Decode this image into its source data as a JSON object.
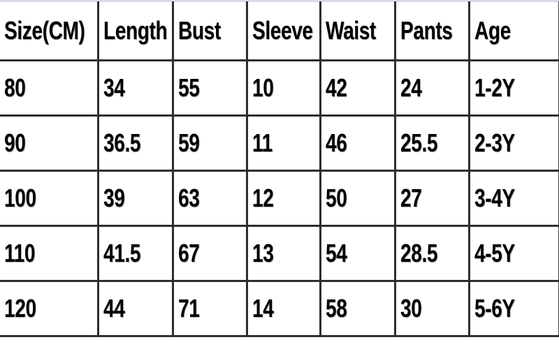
{
  "headers": [
    "Size(CM)",
    "Length",
    "Bust",
    "Sleeve",
    "Waist",
    "Pants",
    "Age"
  ],
  "rows": [
    [
      "80",
      "34",
      "55",
      "10",
      "42",
      "24",
      "1-2Y"
    ],
    [
      "90",
      "36.5",
      "59",
      "11",
      "46",
      "25.5",
      "2-3Y"
    ],
    [
      "100",
      "39",
      "63",
      "12",
      "50",
      "27",
      "3-4Y"
    ],
    [
      "110",
      "41.5",
      "67",
      "13",
      "54",
      "28.5",
      "4-5Y"
    ],
    [
      "120",
      "44",
      "71",
      "14",
      "58",
      "30",
      "5-6Y"
    ]
  ]
}
